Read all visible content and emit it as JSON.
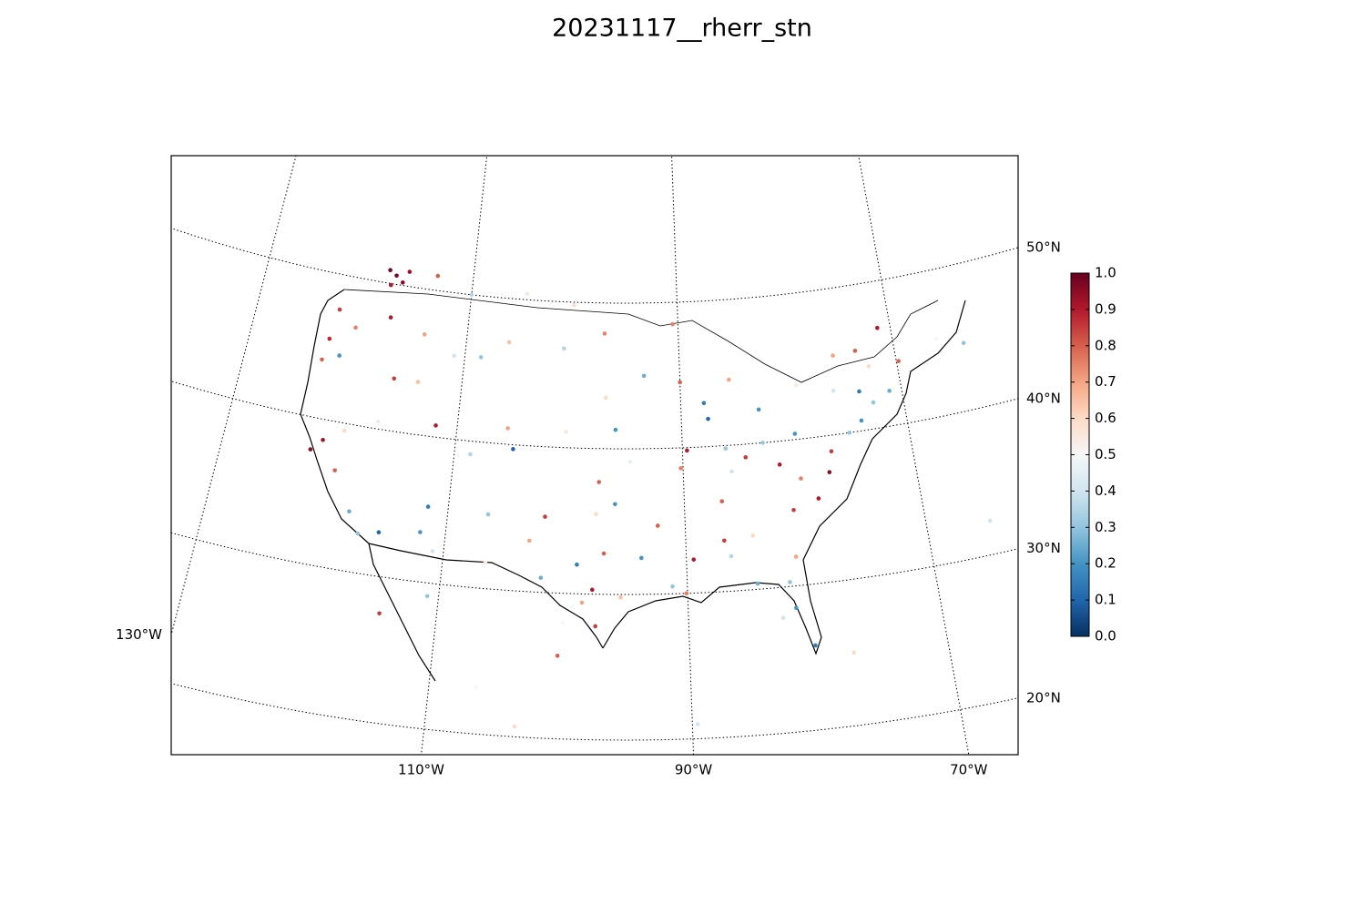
{
  "chart_data": {
    "type": "scatter",
    "title": "20231117__rherr_stn",
    "parallels": [
      {
        "value": 20,
        "label": "20°N"
      },
      {
        "value": 30,
        "label": "30°N"
      },
      {
        "value": 40,
        "label": "40°N"
      },
      {
        "value": 50,
        "label": "50°N"
      }
    ],
    "meridians": [
      {
        "value": -130,
        "label": "130°W"
      },
      {
        "value": -110,
        "label": "110°W"
      },
      {
        "value": -90,
        "label": "90°W"
      },
      {
        "value": -70,
        "label": "70°W"
      }
    ],
    "colormap": [
      "#053061",
      "#2166ac",
      "#4393c3",
      "#92c5de",
      "#d1e5f0",
      "#f7f7f7",
      "#fddbc7",
      "#f4a582",
      "#d6604d",
      "#b2182b",
      "#67001f"
    ],
    "colorbar": {
      "lim": [
        0,
        1
      ],
      "ticks": [
        {
          "value": 0,
          "label": "0.0"
        },
        0.1,
        0.2,
        0.3,
        0.4,
        0.5,
        0.6,
        0.7,
        0.8,
        0.9,
        {
          "value": 1,
          "label": "1.0"
        }
      ]
    },
    "x": [
      -117.5,
      -116.8,
      -118.2,
      -116.3,
      -117.9,
      -122.3,
      -122.7,
      -123.0,
      -121.5,
      -120.5,
      -117.4,
      -114.0,
      -111.0,
      -108.5,
      -106.0,
      -100.8,
      -97.0,
      -96.8,
      -93.3,
      -90.0,
      -87.9,
      -85.5,
      -83.0,
      -84.5,
      -87.6,
      -89.6,
      -86.2,
      -90.2,
      -94.6,
      -97.3,
      -95.9,
      -100.3,
      -104.9,
      -105.5,
      -108.6,
      -111.9,
      -114.0,
      -116.2,
      -119.8,
      -117.0,
      -121.5,
      -122.4,
      -120.0,
      -118.2,
      -117.2,
      -115.5,
      -112.1,
      -110.9,
      -111.7,
      -106.6,
      -106.5,
      -103.0,
      -101.8,
      -97.5,
      -95.9,
      -98.5,
      -97.7,
      -96.8,
      -95.4,
      -99.0,
      -101.9,
      -100.0,
      -97.4,
      -93.7,
      -92.3,
      -91.2,
      -90.1,
      -89.4,
      -86.8,
      -84.4,
      -86.3,
      -84.3,
      -81.7,
      -81.4,
      -82.5,
      -80.2,
      -81.0,
      -80.8,
      -78.6,
      -77.4,
      -79.9,
      -86.8,
      -85.8,
      -81.6,
      -82.9,
      -80.0,
      -77.0,
      -75.2,
      -74.0,
      -73.8,
      -76.1,
      -71.1,
      -72.6,
      -69.8,
      -72.7,
      -79.4,
      -75.7,
      -73.6,
      -71.2,
      -66.0,
      -63.6,
      -90.5,
      -100.0,
      -104.6,
      -110.0,
      -113.5,
      -100.3,
      -103.3,
      -106.4,
      -110.9,
      -114.5,
      -89.6,
      -77.3,
      -64.8
    ],
    "y": [
      50.6,
      50.2,
      50.9,
      51.0,
      49.9,
      47.6,
      45.5,
      44.0,
      44.5,
      46.6,
      47.7,
      46.9,
      45.7,
      45.8,
      47.0,
      46.8,
      47.9,
      43.5,
      45.0,
      44.5,
      43.0,
      44.5,
      42.3,
      39.1,
      41.9,
      39.8,
      39.8,
      38.6,
      39.1,
      37.7,
      41.3,
      41.1,
      39.7,
      41.1,
      39.1,
      40.8,
      43.6,
      43.6,
      39.5,
      40.5,
      38.6,
      37.8,
      36.7,
      34.1,
      32.7,
      33.0,
      33.4,
      32.2,
      35.2,
      35.1,
      31.8,
      33.5,
      35.2,
      35.5,
      36.2,
      29.4,
      30.3,
      32.8,
      29.8,
      32.0,
      31.0,
      28.0,
      27.8,
      32.5,
      34.7,
      30.5,
      30.0,
      32.3,
      33.5,
      33.7,
      32.4,
      30.4,
      30.3,
      28.5,
      27.9,
      25.8,
      32.0,
      35.2,
      35.8,
      37.5,
      37.3,
      36.2,
      38.2,
      38.4,
      40.0,
      40.4,
      38.9,
      40.0,
      40.7,
      42.7,
      43.0,
      42.4,
      44.3,
      44.3,
      41.8,
      43.7,
      45.4,
      45.5,
      46.8,
      45.3,
      44.6,
      48.5,
      49.8,
      50.4,
      50.0,
      51.0,
      25.7,
      20.7,
      23.2,
      29.1,
      27.5,
      21.0,
      25.0,
      32.3
    ],
    "values": [
      0.97,
      0.95,
      0.98,
      0.93,
      0.9,
      0.85,
      0.88,
      0.8,
      0.2,
      0.75,
      0.9,
      0.7,
      0.4,
      0.3,
      0.65,
      0.35,
      0.75,
      0.6,
      0.25,
      0.8,
      0.15,
      0.7,
      0.2,
      0.85,
      0.1,
      0.9,
      0.3,
      0.75,
      0.45,
      0.8,
      0.2,
      0.55,
      0.1,
      0.7,
      0.35,
      0.9,
      0.65,
      0.85,
      0.6,
      0.45,
      0.92,
      0.95,
      0.8,
      0.25,
      0.3,
      0.1,
      0.2,
      0.4,
      0.15,
      0.3,
      0.55,
      0.7,
      0.85,
      0.6,
      0.2,
      0.7,
      0.9,
      0.8,
      0.65,
      0.15,
      0.25,
      0.5,
      0.85,
      0.2,
      0.8,
      0.3,
      0.75,
      0.9,
      0.85,
      0.6,
      0.35,
      0.25,
      0.3,
      0.2,
      0.4,
      0.15,
      0.7,
      0.85,
      0.9,
      0.95,
      0.75,
      0.8,
      0.4,
      0.9,
      0.3,
      0.2,
      0.85,
      0.3,
      0.2,
      0.15,
      0.4,
      0.25,
      0.6,
      0.8,
      0.3,
      0.55,
      0.7,
      0.8,
      0.9,
      0.5,
      0.3,
      0.75,
      0.6,
      0.55,
      0.35,
      0.8,
      0.8,
      0.6,
      0.5,
      0.3,
      0.85,
      0.4,
      0.6,
      0.4
    ]
  }
}
